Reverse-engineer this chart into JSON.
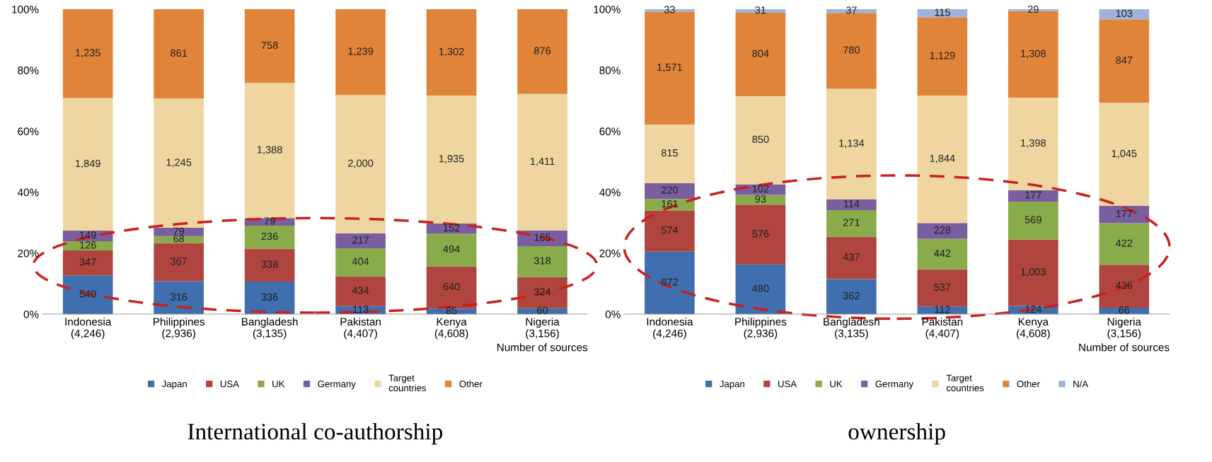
{
  "chart_data": [
    {
      "type": "bar",
      "stacked": true,
      "title": "International co-authorship",
      "xlabel": "Number of sources",
      "legend": "bottom",
      "grid": false,
      "categories": [
        "Indonesia\n(4,246)",
        "Philippines\n(2,936)",
        "Bangladesh\n(3,135)",
        "Pakistan\n(4,407)",
        "Kenya\n(4,608)",
        "Nigeria\n(3,156)"
      ],
      "ylim": [
        0,
        100
      ],
      "yticks": [
        {
          "value": 0,
          "label": "0%"
        },
        {
          "value": 20,
          "label": "20%"
        },
        {
          "value": 40,
          "label": "40%"
        },
        {
          "value": 60,
          "label": "60%"
        },
        {
          "value": 80,
          "label": "80%"
        },
        {
          "value": 100,
          "label": "100%"
        }
      ],
      "series": [
        {
          "name": "Japan",
          "color": "#3f6fae",
          "values": [
            12.7,
            10.8,
            10.7,
            2.6,
            1.8,
            1.9
          ]
        },
        {
          "name": "USA",
          "color": "#b04540",
          "values": [
            8.2,
            12.5,
            10.8,
            9.8,
            13.9,
            10.3
          ]
        },
        {
          "name": "UK",
          "color": "#8aab4a",
          "values": [
            3.0,
            2.3,
            7.5,
            9.2,
            10.7,
            10.1
          ]
        },
        {
          "name": "Germany",
          "color": "#7a5ea0",
          "values": [
            3.5,
            2.7,
            2.5,
            4.9,
            3.3,
            5.2
          ]
        },
        {
          "name": "Target\ncountries",
          "color": "#efd6a0",
          "values": [
            43.5,
            42.4,
            44.3,
            45.4,
            42.0,
            44.7
          ]
        },
        {
          "name": "Other",
          "color": "#e0843a",
          "values": [
            29.1,
            29.3,
            24.2,
            28.1,
            28.3,
            27.8
          ]
        }
      ],
      "annotations": [
        "540",
        "347",
        "126",
        "149",
        "1,849",
        "1,235",
        "316",
        "367",
        "68",
        "79",
        "1,245",
        "861",
        "336",
        "338",
        "236",
        "79",
        "1,388",
        "758",
        "113",
        "434",
        "404",
        "217",
        "2,000",
        "1,239",
        "85",
        "640",
        "494",
        "152",
        "1,935",
        "1,302",
        "60",
        "324",
        "318",
        "165",
        "1,411",
        "876"
      ]
    },
    {
      "type": "bar",
      "stacked": true,
      "title": "ownership",
      "xlabel": "Number of sources",
      "legend": "bottom",
      "grid": false,
      "categories": [
        "Indonesia\n(4,246)",
        "Philippines\n(2,936)",
        "Bangladesh\n(3,135)",
        "Pakistan\n(4,407)",
        "Kenya\n(4,608)",
        "Nigeria\n(3,156)"
      ],
      "ylim": [
        0,
        100
      ],
      "yticks": [
        {
          "value": 0,
          "label": "0%"
        },
        {
          "value": 20,
          "label": "20%"
        },
        {
          "value": 40,
          "label": "40%"
        },
        {
          "value": 60,
          "label": "60%"
        },
        {
          "value": 80,
          "label": "80%"
        },
        {
          "value": 100,
          "label": "100%"
        }
      ],
      "series": [
        {
          "name": "Japan",
          "color": "#3f6fae",
          "values": [
            20.5,
            16.3,
            11.5,
            2.5,
            2.7,
            2.1
          ]
        },
        {
          "name": "USA",
          "color": "#b04540",
          "values": [
            13.5,
            19.6,
            13.9,
            12.2,
            21.8,
            14.1
          ]
        },
        {
          "name": "UK",
          "color": "#8aab4a",
          "values": [
            3.8,
            3.2,
            8.7,
            10.0,
            12.4,
            13.6
          ]
        },
        {
          "name": "Germany",
          "color": "#7a5ea0",
          "values": [
            5.2,
            3.5,
            3.6,
            5.2,
            3.8,
            5.7
          ]
        },
        {
          "name": "Target\ncountries",
          "color": "#efd6a0",
          "values": [
            19.2,
            28.9,
            36.2,
            41.8,
            30.3,
            33.8
          ]
        },
        {
          "name": "Other",
          "color": "#e0843a",
          "values": [
            37.0,
            27.4,
            24.9,
            25.7,
            28.4,
            27.4
          ]
        },
        {
          "name": "N/A",
          "color": "#9db4dc",
          "values": [
            0.8,
            1.1,
            1.2,
            2.6,
            0.6,
            3.3
          ]
        }
      ],
      "annotations": [
        "872",
        "574",
        "161",
        "220",
        "815",
        "1,571",
        "33",
        "480",
        "576",
        "93",
        "102",
        "850",
        "804",
        "31",
        "362",
        "437",
        "271",
        "114",
        "1,134",
        "780",
        "37",
        "112",
        "537",
        "442",
        "228",
        "1,844",
        "1,129",
        "115",
        "124",
        "1,003",
        "569",
        "177",
        "1,398",
        "1,308",
        "29",
        "66",
        "436",
        "422",
        "177",
        "1,045",
        "847",
        "103"
      ]
    }
  ]
}
